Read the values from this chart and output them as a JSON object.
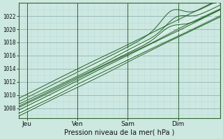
{
  "title": "",
  "xlabel": "Pression niveau de la mer( hPa )",
  "ylabel": "",
  "bg_color": "#cce8e0",
  "plot_bg_color": "#cce8e0",
  "grid_major_color": "#99bbbb",
  "grid_minor_color": "#bbdddd",
  "line_color_dark": "#1a5c1a",
  "line_color_white": "#e8f5f2",
  "ylim": [
    1006.5,
    1024.0
  ],
  "xlim": [
    0,
    96
  ],
  "yticks": [
    1008,
    1010,
    1012,
    1014,
    1016,
    1018,
    1020,
    1022
  ],
  "xtick_positions": [
    4,
    28,
    52,
    76
  ],
  "xtick_labels": [
    "Jeu",
    "Ven",
    "Sam",
    "Dim"
  ],
  "vline_positions": [
    4,
    28,
    52,
    76
  ],
  "figsize": [
    3.2,
    2.0
  ],
  "dpi": 100
}
